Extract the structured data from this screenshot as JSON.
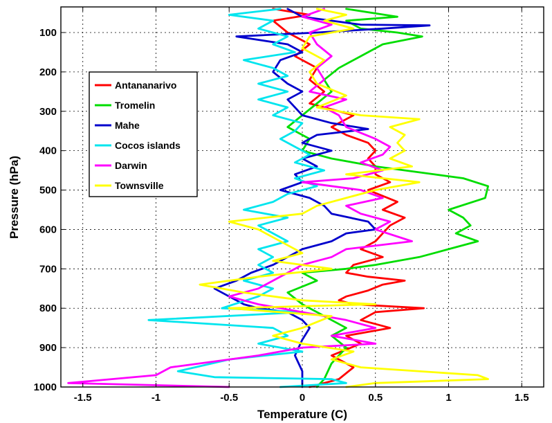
{
  "chart_data": {
    "type": "line",
    "title": "",
    "xlabel": "Temperature (C)",
    "ylabel": "Pressure (hPa)",
    "xlim": [
      -1.65,
      1.65
    ],
    "ylim": [
      1000,
      35
    ],
    "y_reversed": true,
    "grid": true,
    "legend_position": "upper-left",
    "x_ticks": [
      -1.5,
      -1,
      -0.5,
      0,
      0.5,
      1,
      1.5
    ],
    "x_tick_labels": [
      "-1.5",
      "-1",
      "-0.5",
      "0",
      "0.5",
      "1",
      "1.5"
    ],
    "y_ticks": [
      100,
      200,
      300,
      400,
      500,
      600,
      700,
      800,
      900,
      1000
    ],
    "y_tick_labels": [
      "100",
      "200",
      "300",
      "400",
      "500",
      "600",
      "700",
      "800",
      "900",
      "1000"
    ],
    "series": [
      {
        "name": "Antananarivo",
        "color": "#ff0000",
        "points": [
          [
            -0.2,
            40
          ],
          [
            0.05,
            55
          ],
          [
            -0.2,
            70
          ],
          [
            -0.1,
            100
          ],
          [
            0.05,
            130
          ],
          [
            -0.05,
            160
          ],
          [
            0.1,
            190
          ],
          [
            0.05,
            220
          ],
          [
            0.15,
            250
          ],
          [
            0.05,
            280
          ],
          [
            0.35,
            310
          ],
          [
            0.2,
            340
          ],
          [
            0.3,
            360
          ],
          [
            0.45,
            380
          ],
          [
            0.5,
            400
          ],
          [
            0.45,
            420
          ],
          [
            0.5,
            440
          ],
          [
            0.5,
            460
          ],
          [
            0.6,
            480
          ],
          [
            0.45,
            500
          ],
          [
            0.65,
            530
          ],
          [
            0.55,
            550
          ],
          [
            0.7,
            570
          ],
          [
            0.6,
            590
          ],
          [
            0.55,
            610
          ],
          [
            0.5,
            630
          ],
          [
            0.4,
            650
          ],
          [
            0.55,
            670
          ],
          [
            0.35,
            690
          ],
          [
            0.3,
            710
          ],
          [
            0.45,
            720
          ],
          [
            0.7,
            730
          ],
          [
            0.55,
            740
          ],
          [
            0.45,
            755
          ],
          [
            0.3,
            770
          ],
          [
            0.25,
            780
          ],
          [
            0.35,
            790
          ],
          [
            0.83,
            800
          ],
          [
            0.5,
            810
          ],
          [
            0.4,
            830
          ],
          [
            0.6,
            850
          ],
          [
            0.3,
            870
          ],
          [
            0.4,
            890
          ],
          [
            0.2,
            920
          ],
          [
            0.35,
            950
          ],
          [
            0.25,
            980
          ],
          [
            0.05,
            1000
          ]
        ]
      },
      {
        "name": "Tromelin",
        "color": "#00dd00",
        "points": [
          [
            0.3,
            40
          ],
          [
            0.65,
            60
          ],
          [
            0.3,
            70
          ],
          [
            0.4,
            90
          ],
          [
            0.65,
            100
          ],
          [
            0.82,
            110
          ],
          [
            0.55,
            130
          ],
          [
            0.4,
            160
          ],
          [
            0.25,
            190
          ],
          [
            0.15,
            220
          ],
          [
            0.2,
            250
          ],
          [
            0.1,
            280
          ],
          [
            0.0,
            310
          ],
          [
            -0.1,
            340
          ],
          [
            0.05,
            370
          ],
          [
            0.0,
            400
          ],
          [
            0.2,
            420
          ],
          [
            0.5,
            440
          ],
          [
            0.9,
            460
          ],
          [
            1.1,
            470
          ],
          [
            1.27,
            490
          ],
          [
            1.25,
            520
          ],
          [
            1.0,
            550
          ],
          [
            1.1,
            570
          ],
          [
            1.15,
            590
          ],
          [
            1.05,
            610
          ],
          [
            1.2,
            630
          ],
          [
            1.0,
            650
          ],
          [
            0.8,
            670
          ],
          [
            0.5,
            690
          ],
          [
            0.3,
            700
          ],
          [
            0.0,
            710
          ],
          [
            0.1,
            730
          ],
          [
            -0.1,
            760
          ],
          [
            0.0,
            790
          ],
          [
            0.1,
            810
          ],
          [
            0.2,
            830
          ],
          [
            0.3,
            850
          ],
          [
            0.2,
            870
          ],
          [
            0.3,
            900
          ],
          [
            0.2,
            940
          ],
          [
            0.15,
            980
          ],
          [
            0.1,
            1000
          ]
        ]
      },
      {
        "name": "Mahe",
        "color": "#0000cc",
        "points": [
          [
            -0.1,
            40
          ],
          [
            0.0,
            60
          ],
          [
            0.2,
            70
          ],
          [
            0.4,
            80
          ],
          [
            0.87,
            82
          ],
          [
            0.55,
            90
          ],
          [
            0.1,
            100
          ],
          [
            -0.45,
            110
          ],
          [
            -0.1,
            130
          ],
          [
            0.0,
            150
          ],
          [
            -0.15,
            170
          ],
          [
            -0.2,
            200
          ],
          [
            -0.1,
            230
          ],
          [
            0.0,
            250
          ],
          [
            -0.1,
            270
          ],
          [
            -0.05,
            290
          ],
          [
            0.0,
            310
          ],
          [
            0.2,
            330
          ],
          [
            0.45,
            345
          ],
          [
            0.1,
            360
          ],
          [
            0.0,
            380
          ],
          [
            0.2,
            400
          ],
          [
            0.0,
            420
          ],
          [
            0.1,
            440
          ],
          [
            -0.05,
            460
          ],
          [
            0.0,
            480
          ],
          [
            -0.15,
            500
          ],
          [
            0.05,
            520
          ],
          [
            0.15,
            540
          ],
          [
            0.2,
            560
          ],
          [
            0.45,
            580
          ],
          [
            0.5,
            600
          ],
          [
            0.3,
            610
          ],
          [
            0.2,
            630
          ],
          [
            0.0,
            650
          ],
          [
            -0.1,
            670
          ],
          [
            -0.2,
            690
          ],
          [
            -0.35,
            710
          ],
          [
            -0.45,
            730
          ],
          [
            -0.6,
            750
          ],
          [
            -0.5,
            770
          ],
          [
            -0.4,
            790
          ],
          [
            -0.3,
            800
          ],
          [
            -0.1,
            810
          ],
          [
            0.0,
            830
          ],
          [
            0.05,
            850
          ],
          [
            0.0,
            880
          ],
          [
            -0.05,
            920
          ],
          [
            0.0,
            960
          ],
          [
            0.0,
            1000
          ]
        ]
      },
      {
        "name": "Cocos islands",
        "color": "#00e5ee",
        "points": [
          [
            -0.15,
            40
          ],
          [
            -0.5,
            55
          ],
          [
            -0.2,
            70
          ],
          [
            -0.3,
            90
          ],
          [
            -0.1,
            110
          ],
          [
            -0.2,
            130
          ],
          [
            -0.05,
            150
          ],
          [
            -0.4,
            170
          ],
          [
            -0.2,
            190
          ],
          [
            -0.1,
            210
          ],
          [
            -0.3,
            230
          ],
          [
            -0.1,
            250
          ],
          [
            -0.3,
            270
          ],
          [
            -0.1,
            290
          ],
          [
            -0.2,
            310
          ],
          [
            0.0,
            330
          ],
          [
            -0.05,
            350
          ],
          [
            -0.15,
            370
          ],
          [
            -0.05,
            390
          ],
          [
            0.05,
            410
          ],
          [
            -0.05,
            430
          ],
          [
            0.15,
            450
          ],
          [
            -0.05,
            470
          ],
          [
            0.1,
            490
          ],
          [
            -0.1,
            510
          ],
          [
            -0.2,
            530
          ],
          [
            -0.4,
            550
          ],
          [
            -0.1,
            570
          ],
          [
            -0.3,
            590
          ],
          [
            -0.2,
            610
          ],
          [
            -0.1,
            630
          ],
          [
            -0.3,
            650
          ],
          [
            -0.2,
            670
          ],
          [
            -0.3,
            690
          ],
          [
            -0.2,
            710
          ],
          [
            -0.4,
            730
          ],
          [
            -0.2,
            750
          ],
          [
            -0.3,
            770
          ],
          [
            -0.55,
            800
          ],
          [
            0.0,
            810
          ],
          [
            -1.05,
            830
          ],
          [
            -0.2,
            850
          ],
          [
            -0.1,
            870
          ],
          [
            -0.3,
            890
          ],
          [
            0.0,
            910
          ],
          [
            -0.5,
            930
          ],
          [
            -0.85,
            960
          ],
          [
            -0.6,
            975
          ],
          [
            0.2,
            980
          ],
          [
            0.3,
            990
          ],
          [
            -0.15,
            1000
          ]
        ]
      },
      {
        "name": "Darwin",
        "color": "#ff00ff",
        "points": [
          [
            0.15,
            40
          ],
          [
            0.0,
            60
          ],
          [
            0.2,
            80
          ],
          [
            0.05,
            100
          ],
          [
            0.1,
            130
          ],
          [
            0.2,
            160
          ],
          [
            0.1,
            190
          ],
          [
            0.15,
            220
          ],
          [
            0.05,
            250
          ],
          [
            0.3,
            270
          ],
          [
            0.15,
            290
          ],
          [
            0.25,
            310
          ],
          [
            0.3,
            340
          ],
          [
            0.5,
            370
          ],
          [
            0.6,
            390
          ],
          [
            0.55,
            410
          ],
          [
            0.4,
            430
          ],
          [
            0.55,
            450
          ],
          [
            0.35,
            470
          ],
          [
            0.0,
            480
          ],
          [
            0.4,
            500
          ],
          [
            0.55,
            520
          ],
          [
            0.3,
            540
          ],
          [
            0.4,
            560
          ],
          [
            0.6,
            580
          ],
          [
            0.5,
            600
          ],
          [
            0.75,
            630
          ],
          [
            0.3,
            650
          ],
          [
            0.2,
            670
          ],
          [
            0.0,
            690
          ],
          [
            -0.1,
            710
          ],
          [
            -0.2,
            730
          ],
          [
            -0.3,
            750
          ],
          [
            -0.5,
            770
          ],
          [
            -0.3,
            790
          ],
          [
            0.0,
            810
          ],
          [
            0.3,
            830
          ],
          [
            0.5,
            850
          ],
          [
            0.2,
            870
          ],
          [
            0.5,
            890
          ],
          [
            0.0,
            900
          ],
          [
            -0.3,
            920
          ],
          [
            -0.5,
            930
          ],
          [
            -0.9,
            950
          ],
          [
            -1.0,
            970
          ],
          [
            -1.6,
            990
          ],
          [
            -0.5,
            1000
          ]
        ]
      },
      {
        "name": "Townsville",
        "color": "#ffff00",
        "points": [
          [
            0.1,
            40
          ],
          [
            0.3,
            55
          ],
          [
            0.15,
            70
          ],
          [
            0.35,
            90
          ],
          [
            0.05,
            110
          ],
          [
            0.0,
            140
          ],
          [
            0.15,
            170
          ],
          [
            0.05,
            200
          ],
          [
            0.1,
            230
          ],
          [
            0.3,
            260
          ],
          [
            0.1,
            290
          ],
          [
            0.4,
            310
          ],
          [
            0.8,
            320
          ],
          [
            0.6,
            340
          ],
          [
            0.7,
            360
          ],
          [
            0.65,
            380
          ],
          [
            0.7,
            400
          ],
          [
            0.6,
            420
          ],
          [
            0.75,
            440
          ],
          [
            0.3,
            460
          ],
          [
            0.8,
            480
          ],
          [
            0.5,
            500
          ],
          [
            0.3,
            520
          ],
          [
            0.1,
            540
          ],
          [
            0.0,
            560
          ],
          [
            -0.5,
            580
          ],
          [
            -0.3,
            600
          ],
          [
            -0.2,
            620
          ],
          [
            -0.1,
            640
          ],
          [
            0.0,
            660
          ],
          [
            -0.2,
            680
          ],
          [
            0.2,
            700
          ],
          [
            -0.3,
            720
          ],
          [
            -0.7,
            740
          ],
          [
            -0.4,
            760
          ],
          [
            0.0,
            780
          ],
          [
            0.5,
            790
          ],
          [
            -0.5,
            800
          ],
          [
            0.2,
            820
          ],
          [
            0.0,
            850
          ],
          [
            -0.2,
            870
          ],
          [
            0.0,
            890
          ],
          [
            0.35,
            910
          ],
          [
            0.2,
            930
          ],
          [
            0.4,
            950
          ],
          [
            1.2,
            970
          ],
          [
            1.27,
            980
          ],
          [
            0.5,
            990
          ],
          [
            0.3,
            1000
          ]
        ]
      }
    ]
  }
}
